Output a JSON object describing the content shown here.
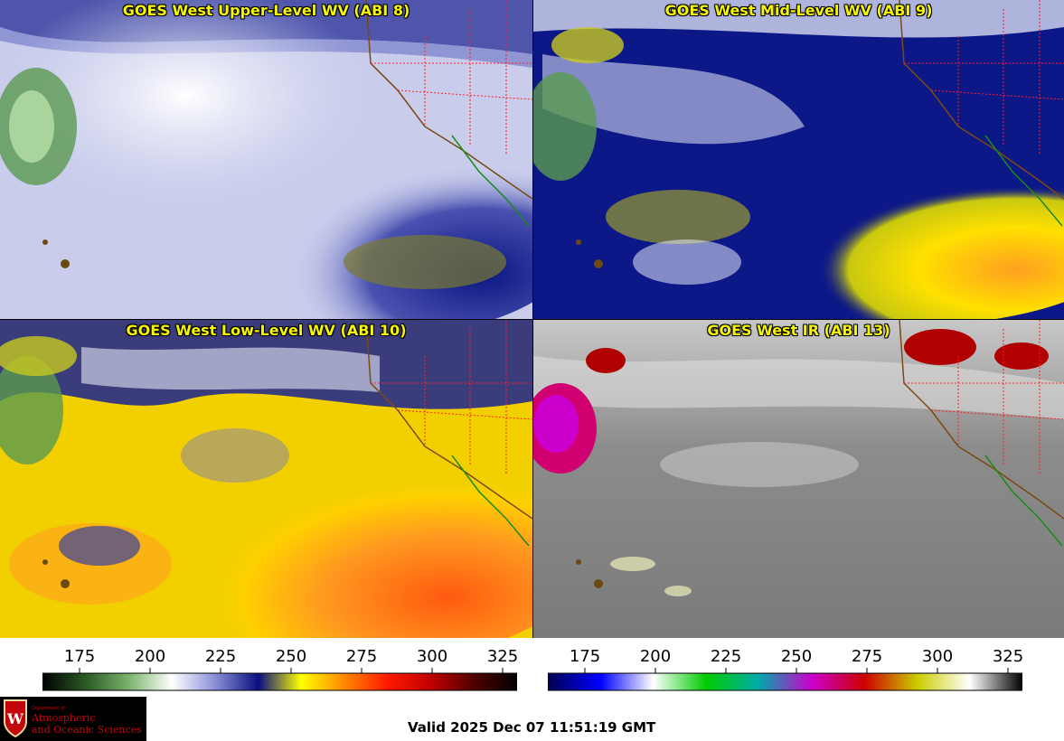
{
  "panels": [
    {
      "title": "GOES West Upper-Level WV (ABI 8)",
      "band": "ABI 8"
    },
    {
      "title": "GOES West Mid-Level WV (ABI 9)",
      "band": "ABI 9"
    },
    {
      "title": "GOES West Low-Level WV (ABI 10)",
      "band": "ABI 10"
    },
    {
      "title": "GOES West IR (ABI 13)",
      "band": "ABI 13"
    }
  ],
  "colorbars": [
    {
      "name": "wv-colorbar",
      "ticks": [
        "175",
        "200",
        "225",
        "250",
        "275",
        "300",
        "325"
      ],
      "colors": [
        "#000000",
        "#2a5a24",
        "#7bb36c",
        "#ffffff",
        "#8a8fd8",
        "#0a0f80",
        "#ffff00",
        "#ff8800",
        "#ff1a00",
        "#c00000",
        "#500000",
        "#000000"
      ]
    },
    {
      "name": "ir-colorbar",
      "ticks": [
        "175",
        "200",
        "225",
        "250",
        "275",
        "300",
        "325"
      ],
      "colors": [
        "#000050",
        "#0000ff",
        "#ffffff",
        "#00cc00",
        "#00aaaa",
        "#cc00cc",
        "#cc0000",
        "#cccc00",
        "#ffffff",
        "#000000"
      ]
    }
  ],
  "logo": {
    "dept": "Department of",
    "line1": "Atmospheric",
    "line2": "and Oceanic Sciences"
  },
  "valid_time": "Valid 2025 Dec 07 11:51:19 GMT"
}
